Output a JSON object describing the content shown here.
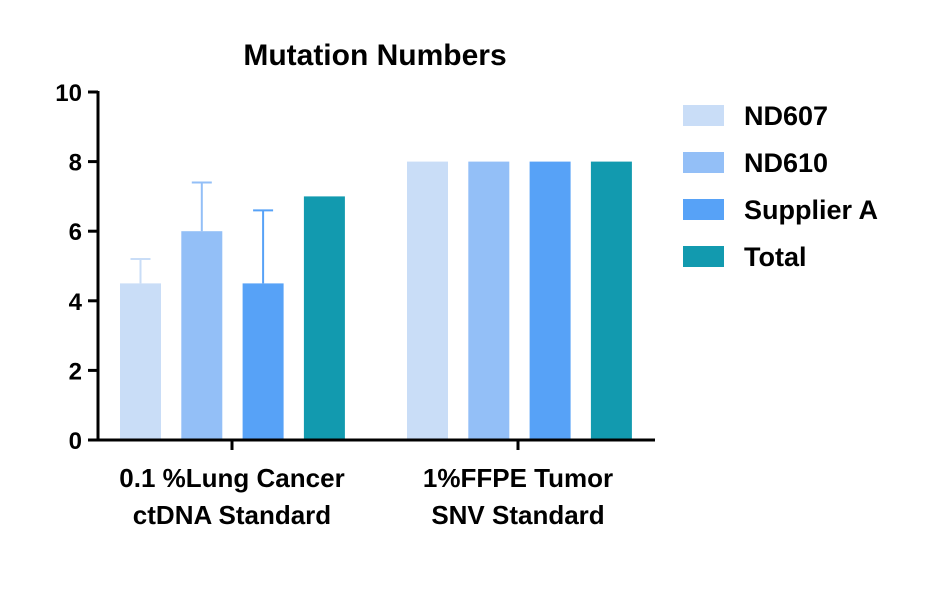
{
  "chart_data": {
    "type": "bar",
    "title": "Mutation Numbers",
    "xlabel": "",
    "ylabel": "",
    "ylim": [
      0,
      10
    ],
    "yticks": [
      "0",
      "2",
      "4",
      "6",
      "8",
      "10"
    ],
    "grid": false,
    "legend_position": "right",
    "categories": [
      [
        "0.1 %Lung Cancer",
        "ctDNA Standard"
      ],
      [
        "1%FFPE Tumor",
        "SNV Standard"
      ]
    ],
    "series": [
      {
        "name": "ND607",
        "color": "#c9ddf7",
        "values": [
          4.5,
          8
        ],
        "error_upper": [
          5.2,
          null
        ]
      },
      {
        "name": "ND610",
        "color": "#93bff7",
        "values": [
          6,
          8
        ],
        "error_upper": [
          7.4,
          null
        ]
      },
      {
        "name": "Supplier A",
        "color": "#57a2f7",
        "values": [
          4.5,
          8
        ],
        "error_upper": [
          6.6,
          null
        ]
      },
      {
        "name": "Total",
        "color": "#129aaf",
        "values": [
          7,
          8
        ],
        "error_upper": [
          null,
          null
        ]
      }
    ]
  }
}
